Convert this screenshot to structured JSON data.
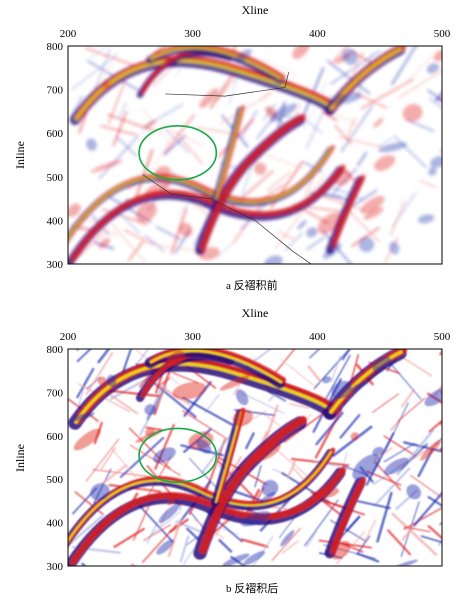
{
  "figure": {
    "captions": [
      "a  反褶积前",
      "b  反褶积后"
    ]
  },
  "colors": {
    "background": "#ffffff",
    "seismic_negative": "#1f2fb0",
    "seismic_negative_strong": "#2a0a78",
    "seismic_positive": "#e0201c",
    "seismic_peak": "#f4e21c",
    "highlight_ellipse": "#19a84a",
    "fault_line": "#333333"
  },
  "chart_data": [
    {
      "type": "heatmap",
      "title": "",
      "caption": "a  反褶积前",
      "xlabel": "Xline",
      "ylabel": "Inline",
      "xlim": [
        200,
        500
      ],
      "ylim": [
        300,
        800
      ],
      "xticks": [
        200,
        300,
        400,
        500
      ],
      "yticks": [
        300,
        400,
        500,
        600,
        700,
        800
      ],
      "x_axis_position": "top",
      "colormap": "seismic (blue-white-red with yellow peaks)",
      "grid": false,
      "annotations": [
        {
          "type": "ellipse",
          "color": "green",
          "center": [
            288,
            555
          ],
          "rx": 31,
          "ry": 62
        },
        {
          "type": "fault",
          "points": [
            [
              278,
              690
            ],
            [
              326,
              685
            ],
            [
              374,
              705
            ],
            [
              377,
              740
            ]
          ]
        },
        {
          "type": "fault",
          "points": [
            [
              260,
              505
            ],
            [
              283,
              460
            ],
            [
              314,
              450
            ],
            [
              350,
              400
            ],
            [
              380,
              330
            ],
            [
              395,
              300
            ]
          ]
        }
      ]
    },
    {
      "type": "heatmap",
      "title": "",
      "caption": "b  反褶积后",
      "xlabel": "Xline",
      "ylabel": "Inline",
      "xlim": [
        200,
        500
      ],
      "ylim": [
        300,
        800
      ],
      "xticks": [
        200,
        300,
        400,
        500
      ],
      "yticks": [
        300,
        400,
        500,
        600,
        700,
        800
      ],
      "x_axis_position": "top",
      "colormap": "seismic (blue-white-red with yellow peaks)",
      "grid": false,
      "annotations": [
        {
          "type": "ellipse",
          "color": "green",
          "center": [
            288,
            555
          ],
          "rx": 31,
          "ry": 62
        }
      ]
    }
  ]
}
